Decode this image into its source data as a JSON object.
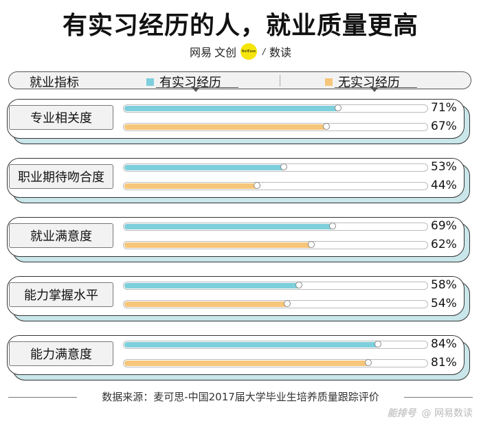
{
  "title": "有实习经历的人，就业质量更高",
  "brand": {
    "name_left": "网易",
    "name_mid": "文创",
    "logo_text": "NetEase",
    "separator": "/",
    "name_right": "数读"
  },
  "legend": {
    "category_header": "就业指标",
    "items": [
      {
        "label": "有实习经历",
        "color": "#7ecfdc"
      },
      {
        "label": "无实习经历",
        "color": "#f6c67b"
      }
    ]
  },
  "chart_data": {
    "type": "bar",
    "orientation": "horizontal",
    "categories": [
      "专业相关度",
      "职业期待吻合度",
      "就业满意度",
      "能力掌握水平",
      "能力满意度"
    ],
    "series": [
      {
        "name": "有实习经历",
        "values": [
          71,
          53,
          69,
          58,
          84
        ],
        "labels": [
          "71%",
          "53%",
          "69%",
          "58%",
          "84%"
        ],
        "color": "#7ecfdc"
      },
      {
        "name": "无实习经历",
        "values": [
          67,
          44,
          62,
          54,
          81
        ],
        "labels": [
          "67%",
          "44%",
          "62%",
          "54%",
          "81%"
        ],
        "color": "#f6c67b"
      }
    ],
    "xlim": [
      0,
      100
    ],
    "unit": "%"
  },
  "footer": {
    "source": "数据来源：麦可思-中国2017届大学毕业生培养质量跟踪评价"
  },
  "watermark": {
    "logo": "能排号",
    "text": "@ 网易数读"
  }
}
